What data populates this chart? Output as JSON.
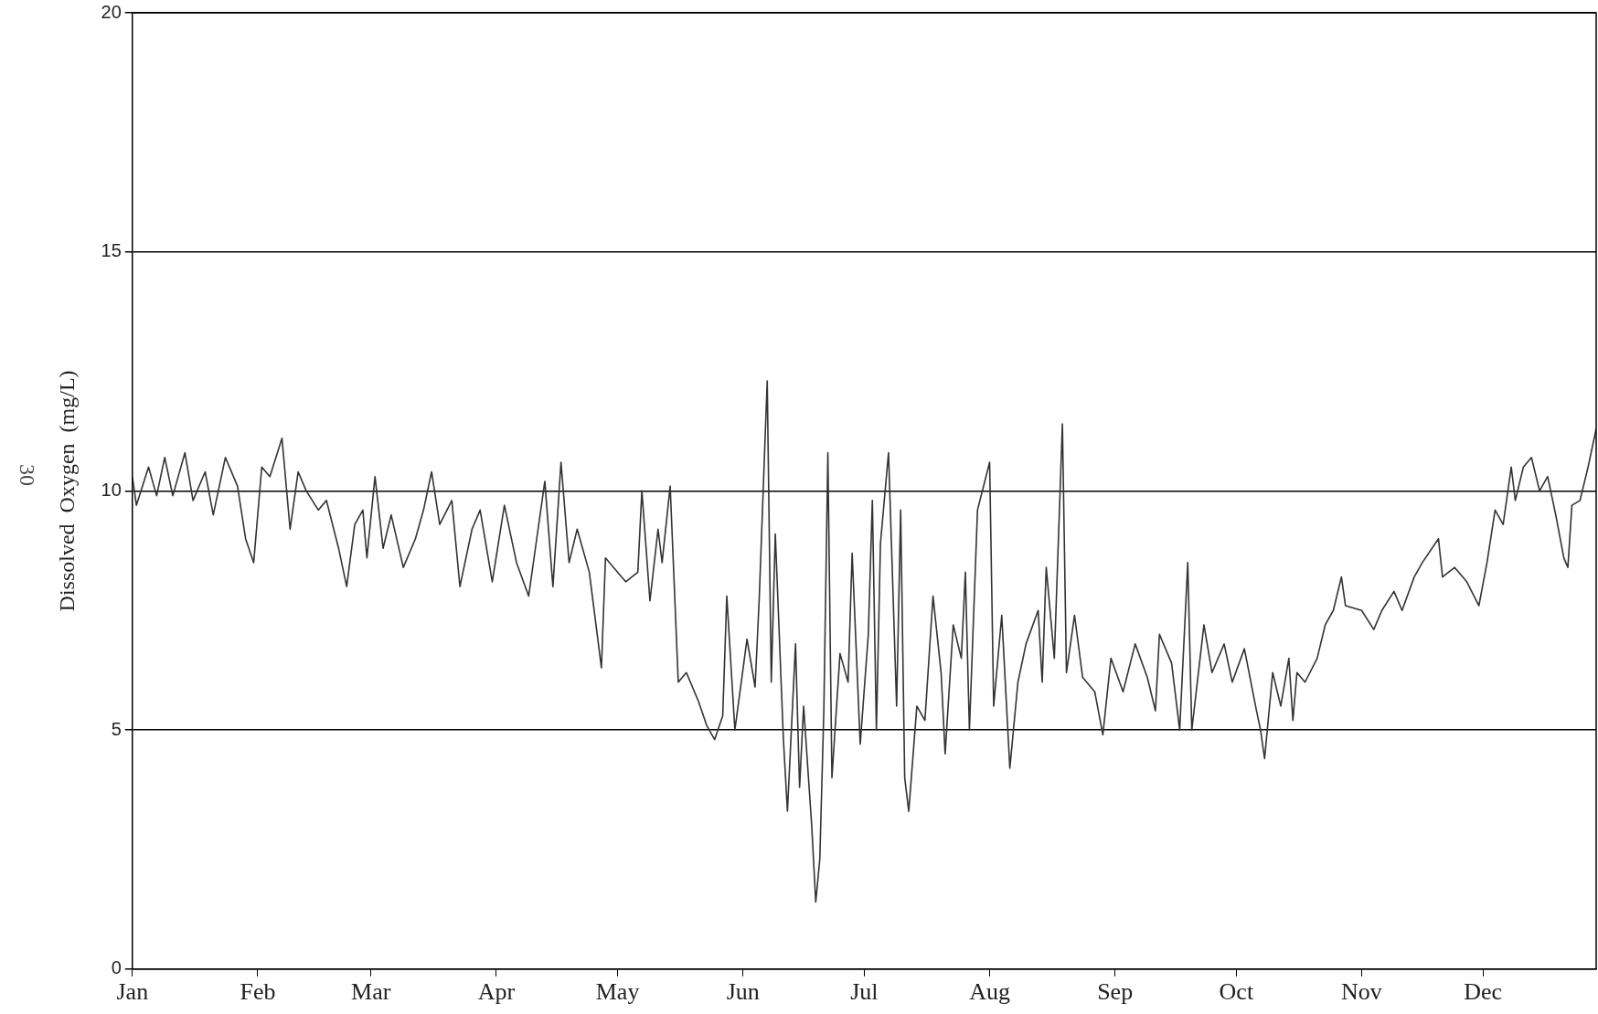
{
  "chart_data": {
    "type": "line",
    "ylabel": "Dissolved  Oxygen  (mg/L)",
    "annotations": [
      "30"
    ],
    "xlim": [
      "--01-01",
      "--12-29"
    ],
    "xticks": [
      {
        "value": "--01-01",
        "label": "Jan"
      },
      {
        "value": "--02-01",
        "label": "Feb"
      },
      {
        "value": "--03-01",
        "label": "Mar"
      },
      {
        "value": "--04-01",
        "label": "Apr"
      },
      {
        "value": "--05-01",
        "label": "May"
      },
      {
        "value": "--06-01",
        "label": "Jun"
      },
      {
        "value": "--07-01",
        "label": "Jul"
      },
      {
        "value": "--08-01",
        "label": "Aug"
      },
      {
        "value": "--09-01",
        "label": "Sep"
      },
      {
        "value": "--10-01",
        "label": "Oct"
      },
      {
        "value": "--11-01",
        "label": "Nov"
      },
      {
        "value": "--12-01",
        "label": "Dec"
      }
    ],
    "ylim": [
      0,
      20
    ],
    "yticks": [
      0,
      5,
      10,
      15,
      20
    ],
    "grid": "y",
    "marker": "none",
    "line_style": "solid",
    "series": [
      {
        "color": "#333333",
        "x": [
          "--01-01",
          "--01-02",
          "--01-05",
          "--01-07",
          "--01-09",
          "--01-11",
          "--01-14",
          "--01-16",
          "--01-19",
          "--01-21",
          "--01-24",
          "--01-27",
          "--01-29",
          "--01-31",
          "--02-02",
          "--02-04",
          "--02-07",
          "--02-09",
          "--02-11",
          "--02-13",
          "--02-16",
          "--02-18",
          "--02-21",
          "--02-23",
          "--02-25",
          "--02-27",
          "--02-28",
          "--03-02",
          "--03-04",
          "--03-06",
          "--03-09",
          "--03-12",
          "--03-14",
          "--03-16",
          "--03-18",
          "--03-21",
          "--03-23",
          "--03-26",
          "--03-28",
          "--03-31",
          "--04-03",
          "--04-06",
          "--04-09",
          "--04-11",
          "--04-13",
          "--04-15",
          "--04-17",
          "--04-19",
          "--04-21",
          "--04-24",
          "--04-27",
          "--04-28",
          "--04-30",
          "--05-03",
          "--05-06",
          "--05-07",
          "--05-09",
          "--05-11",
          "--05-12",
          "--05-14",
          "--05-16",
          "--05-18",
          "--05-21",
          "--05-23",
          "--05-25",
          "--05-27",
          "--05-28",
          "--05-30",
          "--06-02",
          "--06-04",
          "--06-05",
          "--06-07",
          "--06-08",
          "--06-09",
          "--06-11",
          "--06-12",
          "--06-14",
          "--06-15",
          "--06-16",
          "--06-18",
          "--06-19",
          "--06-20",
          "--06-21",
          "--06-22",
          "--06-23",
          "--06-25",
          "--06-27",
          "--06-28",
          "--06-30",
          "--07-02",
          "--07-03",
          "--07-04",
          "--07-05",
          "--07-07",
          "--07-09",
          "--07-10",
          "--07-11",
          "--07-12",
          "--07-14",
          "--07-16",
          "--07-18",
          "--07-20",
          "--07-21",
          "--07-23",
          "--07-25",
          "--07-26",
          "--07-27",
          "--07-29",
          "--08-01",
          "--08-02",
          "--08-04",
          "--08-06",
          "--08-08",
          "--08-10",
          "--08-13",
          "--08-14",
          "--08-15",
          "--08-17",
          "--08-19",
          "--08-20",
          "--08-22",
          "--08-24",
          "--08-27",
          "--08-29",
          "--08-31",
          "--09-03",
          "--09-06",
          "--09-09",
          "--09-11",
          "--09-12",
          "--09-15",
          "--09-17",
          "--09-19",
          "--09-20",
          "--09-23",
          "--09-25",
          "--09-28",
          "--09-30",
          "--10-03",
          "--10-06",
          "--10-07",
          "--10-08",
          "--10-10",
          "--10-12",
          "--10-14",
          "--10-15",
          "--10-16",
          "--10-18",
          "--10-21",
          "--10-23",
          "--10-25",
          "--10-27",
          "--10-28",
          "--11-01",
          "--11-04",
          "--11-06",
          "--11-09",
          "--11-11",
          "--11-14",
          "--11-16",
          "--11-20",
          "--11-21",
          "--11-24",
          "--11-27",
          "--11-30",
          "--12-02",
          "--12-04",
          "--12-06",
          "--12-08",
          "--12-09",
          "--12-11",
          "--12-13",
          "--12-15",
          "--12-17",
          "--12-19",
          "--12-21",
          "--12-22",
          "--12-23",
          "--12-25",
          "--12-27",
          "--12-29"
        ],
        "values": [
          10.3,
          9.7,
          10.5,
          9.9,
          10.7,
          9.9,
          10.8,
          9.8,
          10.4,
          9.5,
          10.7,
          10.1,
          9.0,
          8.5,
          10.5,
          10.3,
          11.1,
          9.2,
          10.4,
          10.0,
          9.6,
          9.8,
          8.8,
          8.0,
          9.3,
          9.6,
          8.6,
          10.3,
          8.8,
          9.5,
          8.4,
          9.0,
          9.6,
          10.4,
          9.3,
          9.8,
          8.0,
          9.2,
          9.6,
          8.1,
          9.7,
          8.5,
          7.8,
          9.0,
          10.2,
          8.0,
          10.6,
          8.5,
          9.2,
          8.3,
          6.3,
          8.6,
          8.4,
          8.1,
          8.3,
          10.0,
          7.7,
          9.2,
          8.5,
          10.1,
          6.0,
          6.2,
          5.6,
          5.1,
          4.8,
          5.3,
          7.8,
          5.0,
          6.9,
          5.9,
          7.7,
          12.3,
          6.0,
          9.1,
          4.8,
          3.3,
          6.8,
          3.8,
          5.5,
          3.0,
          1.4,
          2.3,
          5.4,
          10.8,
          4.0,
          6.6,
          6.0,
          8.7,
          4.7,
          7.0,
          9.8,
          5.0,
          8.9,
          10.8,
          5.5,
          9.6,
          4.0,
          3.3,
          5.5,
          5.2,
          7.8,
          6.2,
          4.5,
          7.2,
          6.5,
          8.3,
          5.0,
          9.6,
          10.6,
          5.5,
          7.4,
          4.2,
          6.0,
          6.8,
          7.5,
          6.0,
          8.4,
          6.5,
          11.4,
          6.2,
          7.4,
          6.1,
          5.8,
          4.9,
          6.5,
          5.8,
          6.8,
          6.1,
          5.4,
          7.0,
          6.4,
          5.0,
          8.5,
          5.0,
          7.2,
          6.2,
          6.8,
          6.0,
          6.7,
          5.4,
          5.0,
          4.4,
          6.2,
          5.5,
          6.5,
          5.2,
          6.2,
          6.0,
          6.5,
          7.2,
          7.5,
          8.2,
          7.6,
          7.5,
          7.1,
          7.5,
          7.9,
          7.5,
          8.2,
          8.5,
          9.0,
          8.2,
          8.4,
          8.1,
          7.6,
          8.5,
          9.6,
          9.3,
          10.5,
          9.8,
          10.5,
          10.7,
          10.0,
          10.3,
          9.5,
          8.6,
          8.4,
          9.7,
          9.8,
          10.5,
          11.3
        ]
      }
    ]
  }
}
